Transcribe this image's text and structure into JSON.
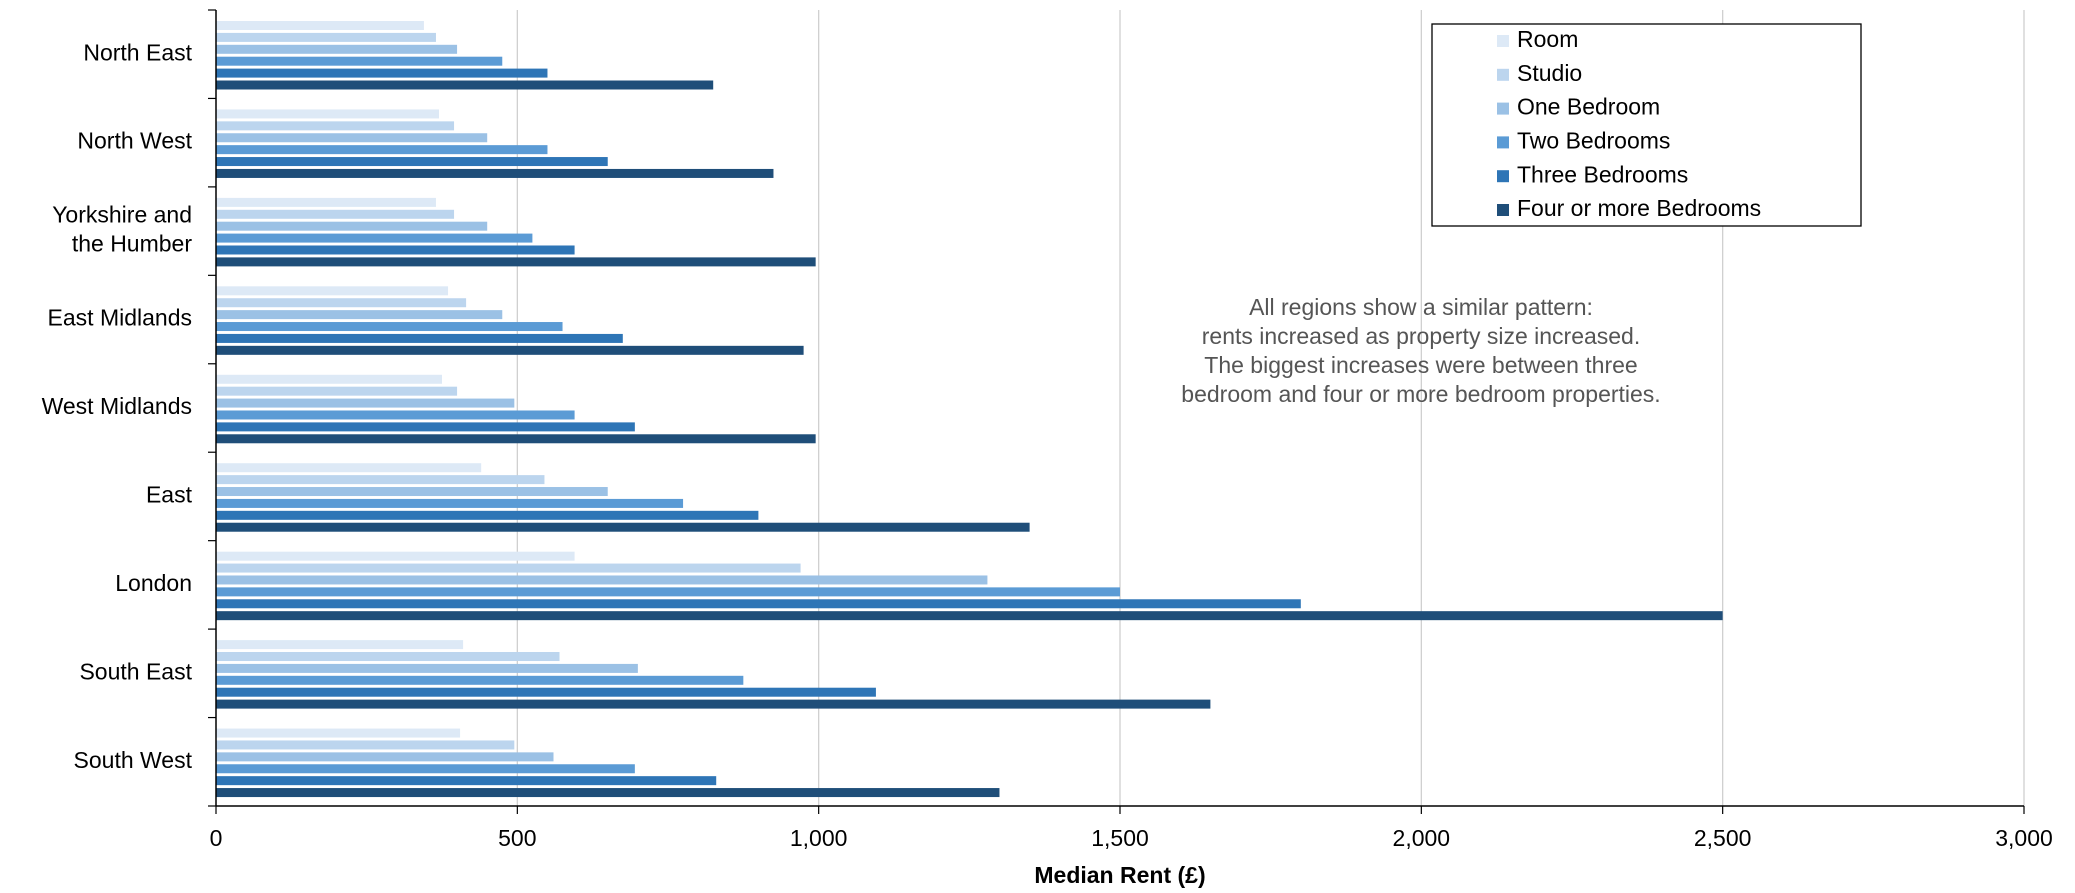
{
  "chart_data": {
    "type": "bar",
    "orientation": "horizontal",
    "categories": [
      "North East",
      "North West",
      "Yorkshire and the Humber",
      "East Midlands",
      "West Midlands",
      "East",
      "London",
      "South East",
      "South West"
    ],
    "category_label_lines": [
      [
        "North East"
      ],
      [
        "North West"
      ],
      [
        "Yorkshire and",
        "the Humber"
      ],
      [
        "East Midlands"
      ],
      [
        "West Midlands"
      ],
      [
        "East"
      ],
      [
        "London"
      ],
      [
        "South East"
      ],
      [
        "South West"
      ]
    ],
    "series": [
      {
        "name": "Room",
        "color": "#dde9f6",
        "values": [
          345,
          370,
          365,
          385,
          375,
          440,
          595,
          410,
          405
        ]
      },
      {
        "name": "Studio",
        "color": "#bcd5ee",
        "values": [
          365,
          395,
          395,
          415,
          400,
          545,
          970,
          570,
          495
        ]
      },
      {
        "name": "One Bedroom",
        "color": "#9bc1e5",
        "values": [
          400,
          450,
          450,
          475,
          495,
          650,
          1280,
          700,
          560
        ]
      },
      {
        "name": "Two Bedrooms",
        "color": "#5b9bd5",
        "values": [
          475,
          550,
          525,
          575,
          595,
          775,
          1500,
          875,
          695
        ]
      },
      {
        "name": "Three Bedrooms",
        "color": "#2e75b6",
        "values": [
          550,
          650,
          595,
          675,
          695,
          900,
          1800,
          1095,
          830
        ]
      },
      {
        "name": "Four or more Bedrooms",
        "color": "#1f4e79",
        "values": [
          825,
          925,
          995,
          975,
          995,
          1350,
          2500,
          1650,
          1300
        ]
      }
    ],
    "xlabel": "Median Rent (£)",
    "ylabel": "",
    "xlim": [
      0,
      3000
    ],
    "xticks": [
      0,
      500,
      1000,
      1500,
      2000,
      2500,
      3000
    ],
    "xtick_labels": [
      "0",
      "500",
      "1,000",
      "1,500",
      "2,000",
      "2,500",
      "3,000"
    ],
    "grid": "vertical",
    "legend": "top-right",
    "annotation_lines": [
      "All regions show a similar pattern:",
      "rents increased as property size increased.",
      "The biggest increases were between three",
      "bedroom and four or more bedroom properties."
    ]
  }
}
